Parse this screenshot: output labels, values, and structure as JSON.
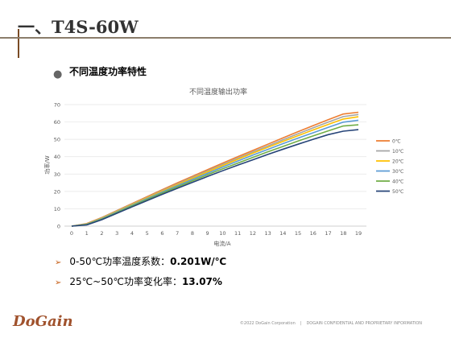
{
  "header": {
    "title": "一、T4S-60W"
  },
  "section": {
    "bullet": "不同温度功率特性"
  },
  "chart_data": {
    "type": "line",
    "title": "不同温度输出功率",
    "xlabel": "电流/A",
    "ylabel": "功率/W",
    "xlim": [
      0,
      19
    ],
    "ylim": [
      0,
      70
    ],
    "x": [
      0,
      1,
      2,
      3,
      4,
      5,
      6,
      7,
      8,
      9,
      10,
      11,
      12,
      13,
      14,
      15,
      16,
      17,
      18,
      19
    ],
    "y_ticks": [
      0,
      10,
      20,
      30,
      40,
      50,
      60,
      70
    ],
    "grid": true,
    "legend_position": "right",
    "series": [
      {
        "name": "0℃",
        "color": "#ed7d31",
        "values": [
          0,
          1.5,
          5,
          9,
          13,
          17,
          21,
          24.9,
          28.7,
          32.5,
          36.3,
          40,
          43.6,
          47.2,
          50.8,
          54.4,
          57.9,
          61.3,
          64.6,
          65.6
        ]
      },
      {
        "name": "10℃",
        "color": "#a5a5a5",
        "values": [
          0,
          1.3,
          4.8,
          8.8,
          12.7,
          16.6,
          20.5,
          24.3,
          28.1,
          31.8,
          35.5,
          39.1,
          42.7,
          46.2,
          49.7,
          53.2,
          56.6,
          59.9,
          63.1,
          64.3
        ]
      },
      {
        "name": "20℃",
        "color": "#ffc000",
        "values": [
          0,
          1.2,
          4.6,
          8.5,
          12.4,
          16.3,
          20.1,
          23.9,
          27.6,
          31.3,
          34.9,
          38.5,
          42,
          45.4,
          48.8,
          52.1,
          55.4,
          58.6,
          61.7,
          63
        ]
      },
      {
        "name": "30℃",
        "color": "#5b9bd5",
        "values": [
          0,
          1.1,
          4.3,
          8.2,
          12,
          15.8,
          19.6,
          23.3,
          26.9,
          30.5,
          34,
          37.5,
          40.9,
          44.2,
          47.5,
          50.7,
          53.8,
          56.9,
          59.9,
          61
        ]
      },
      {
        "name": "40℃",
        "color": "#70ad47",
        "values": [
          0,
          0.9,
          4,
          7.8,
          11.6,
          15.3,
          19,
          22.6,
          26.1,
          29.6,
          33,
          36.3,
          39.6,
          42.8,
          45.9,
          49,
          52,
          54.9,
          57.7,
          58.4
        ]
      },
      {
        "name": "50℃",
        "color": "#264478",
        "values": [
          0,
          0.7,
          3.7,
          7.4,
          11.1,
          14.7,
          18.3,
          21.8,
          25.2,
          28.6,
          31.9,
          35.1,
          38.2,
          41.3,
          44.3,
          47.2,
          50,
          52.7,
          54.7,
          55.6
        ]
      }
    ]
  },
  "stats": [
    {
      "prefix": "0-50℃功率温度系数：",
      "value": "0.201W/℃"
    },
    {
      "prefix": "25℃~50℃功率变化率：",
      "value": "13.07%"
    }
  ],
  "footer": {
    "logo": "DoGain",
    "copyright": "©2022 DoGain Corporation",
    "confidential": "DOGAIN CONFIDENTIAL AND PROPRIETARY INFORMATION"
  }
}
